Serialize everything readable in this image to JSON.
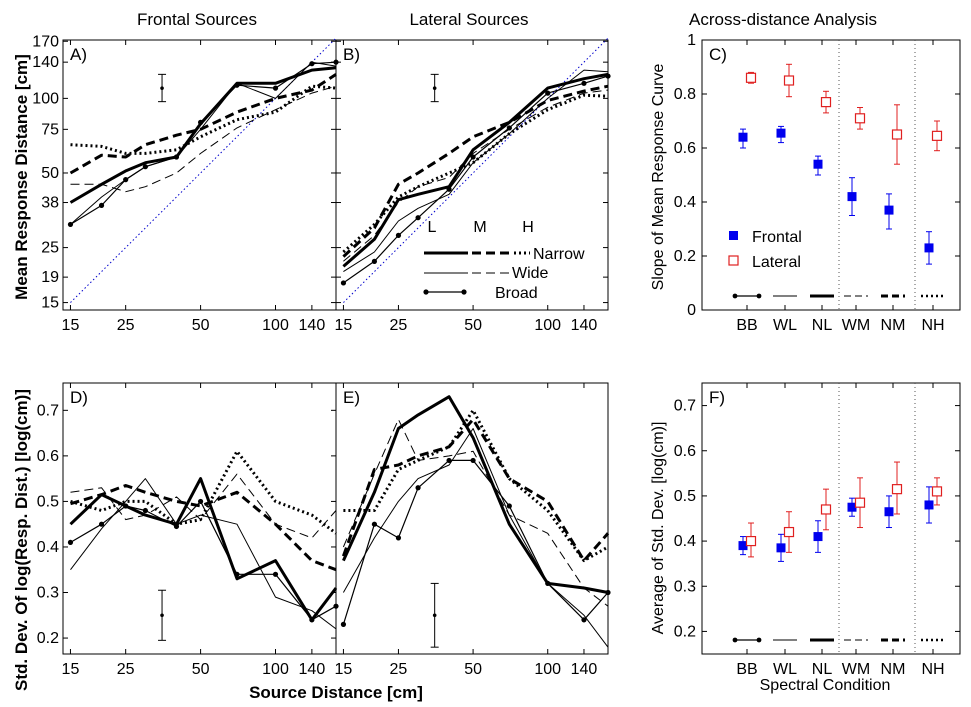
{
  "column_titles": [
    "Frontal Sources",
    "Lateral Sources",
    "Across-distance Analysis"
  ],
  "colors": {
    "frontal": "#0000ee",
    "lateral": "#e02020",
    "ideal": "#0000cc",
    "axis": "#000000"
  },
  "line_legend": {
    "col_headers": [
      "L",
      "M",
      "H"
    ],
    "row_labels": [
      "Narrow",
      "Wide",
      "Broad"
    ]
  },
  "shared_labels": {
    "distance_xlabel": "Source Distance [cm]",
    "response_ylabel": "Mean Response Distance [cm]",
    "stddev_ylabel": "Std. Dev. Of  log(Resp. Dist.) [log(cm)]",
    "spectral_xlabel": "Spectral Condition"
  },
  "chart_data": [
    {
      "type": "line",
      "panel": "A)",
      "title": "Frontal Sources",
      "x_scale": "log",
      "y_scale": "log",
      "xlim": [
        14,
        175
      ],
      "ylim": [
        14,
        172
      ],
      "xticks": [
        15,
        25,
        50,
        100,
        140
      ],
      "yticks": [
        15,
        19,
        25,
        38,
        50,
        75,
        100,
        140,
        170
      ],
      "xlabel": "",
      "ylabel": "Mean Response Distance [cm]",
      "x": [
        15,
        20,
        25,
        30,
        40,
        50,
        70,
        100,
        140,
        175
      ],
      "series": [
        {
          "name": "Narrow L",
          "style": "thick-solid",
          "values": [
            38,
            45,
            51,
            55,
            58,
            79,
            115,
            115,
            130,
            133
          ]
        },
        {
          "name": "Narrow M",
          "style": "thick-dash",
          "values": [
            50,
            59,
            58,
            65,
            71,
            75,
            88,
            100,
            108,
            125
          ]
        },
        {
          "name": "Narrow H",
          "style": "thick-dot",
          "values": [
            65,
            64,
            60,
            60,
            62,
            70,
            82,
            88,
            112,
            110
          ]
        },
        {
          "name": "Wide L",
          "style": "thin-solid",
          "values": [
            31,
            40,
            47,
            53,
            58,
            75,
            115,
            100,
            140,
            135
          ]
        },
        {
          "name": "Wide M",
          "style": "thin-dash",
          "values": [
            45,
            45,
            42,
            44,
            50,
            60,
            76,
            90,
            105,
            112
          ]
        },
        {
          "name": "Broad L",
          "style": "dot-marker",
          "values": [
            31,
            37,
            47,
            53,
            58,
            80,
            113,
            110,
            138,
            140
          ]
        }
      ],
      "reference_line": {
        "style": "thin-dotted-blue",
        "points": [
          [
            15,
            15
          ],
          [
            175,
            175
          ]
        ]
      },
      "error_bar": {
        "x": 35,
        "center": 110,
        "low": 97,
        "high": 125
      }
    },
    {
      "type": "line",
      "panel": "B)",
      "title": "Lateral Sources",
      "x_scale": "log",
      "y_scale": "log",
      "xlim": [
        14,
        175
      ],
      "ylim": [
        14,
        172
      ],
      "xticks": [
        15,
        25,
        50,
        100,
        140
      ],
      "yticks": [
        15,
        19,
        25,
        38,
        50,
        75,
        100,
        140,
        170
      ],
      "x": [
        15,
        20,
        25,
        30,
        40,
        50,
        70,
        100,
        140,
        175
      ],
      "series": [
        {
          "name": "Narrow L",
          "style": "thick-solid",
          "values": [
            21,
            27,
            39,
            41,
            44,
            62,
            80,
            110,
            120,
            125
          ]
        },
        {
          "name": "Narrow M",
          "style": "thick-dash",
          "values": [
            23,
            30,
            45,
            50,
            60,
            70,
            80,
            98,
            107,
            112
          ]
        },
        {
          "name": "Narrow H",
          "style": "thick-dot",
          "values": [
            24,
            31,
            40,
            44,
            50,
            55,
            72,
            90,
            103,
            102
          ]
        },
        {
          "name": "Wide L",
          "style": "thin-solid",
          "values": [
            20,
            24,
            32,
            36,
            41,
            55,
            72,
            100,
            130,
            128
          ]
        },
        {
          "name": "Wide M",
          "style": "thin-dash",
          "values": [
            22,
            28,
            38,
            44,
            48,
            60,
            75,
            92,
            105,
            108
          ]
        },
        {
          "name": "Broad L",
          "style": "dot-marker",
          "values": [
            18,
            22,
            28,
            33,
            43,
            58,
            76,
            105,
            115,
            123
          ]
        }
      ],
      "reference_line": {
        "style": "thin-dotted-blue",
        "points": [
          [
            15,
            15
          ],
          [
            175,
            175
          ]
        ]
      },
      "error_bar": {
        "x": 35,
        "center": 110,
        "low": 97,
        "high": 125
      }
    },
    {
      "type": "scatter",
      "panel": "C)",
      "title": "Across-distance Analysis",
      "ylabel": "Slope of Mean Response Curve",
      "categories": [
        "BB",
        "WL",
        "NL",
        "WM",
        "NM",
        "NH"
      ],
      "ylim": [
        0,
        1
      ],
      "yticks": [
        0,
        0.2,
        0.4,
        0.6,
        0.8,
        1
      ],
      "yticklabels": [
        "0",
        "0.2",
        "0.4",
        "0.6",
        "0.8",
        "1"
      ],
      "series": [
        {
          "name": "Frontal",
          "marker": "filled-square",
          "values": [
            0.64,
            0.655,
            0.54,
            0.42,
            0.37,
            0.23
          ],
          "err_low": [
            0.6,
            0.62,
            0.5,
            0.35,
            0.3,
            0.17
          ],
          "err_high": [
            0.67,
            0.68,
            0.57,
            0.49,
            0.43,
            0.29
          ]
        },
        {
          "name": "Lateral",
          "marker": "open-square",
          "values": [
            0.86,
            0.85,
            0.77,
            0.71,
            0.65,
            0.645
          ],
          "err_low": [
            0.84,
            0.79,
            0.73,
            0.67,
            0.54,
            0.59
          ],
          "err_high": [
            0.88,
            0.91,
            0.81,
            0.75,
            0.76,
            0.7
          ]
        }
      ],
      "legend": [
        "Frontal",
        "Lateral"
      ],
      "separators_after": [
        "NL",
        "NM"
      ]
    },
    {
      "type": "line",
      "panel": "D)",
      "x_scale": "log",
      "xlim": [
        14,
        175
      ],
      "ylim": [
        0.165,
        0.76
      ],
      "xticks": [
        15,
        25,
        50,
        100,
        140
      ],
      "yticks": [
        0.2,
        0.3,
        0.4,
        0.5,
        0.6,
        0.7
      ],
      "xlabel": "Source Distance [cm]",
      "ylabel": "Std. Dev. Of  log(Resp. Dist.) [log(cm)]",
      "x": [
        15,
        20,
        25,
        30,
        40,
        50,
        70,
        100,
        140,
        175
      ],
      "series": [
        {
          "name": "Narrow L",
          "style": "thick-solid",
          "values": [
            0.45,
            0.515,
            0.49,
            0.47,
            0.45,
            0.55,
            0.33,
            0.37,
            0.24,
            0.31
          ]
        },
        {
          "name": "Narrow M",
          "style": "thick-dash",
          "values": [
            0.495,
            0.515,
            0.535,
            0.52,
            0.5,
            0.49,
            0.52,
            0.45,
            0.37,
            0.35
          ]
        },
        {
          "name": "Narrow H",
          "style": "thick-dot",
          "values": [
            0.5,
            0.48,
            0.5,
            0.5,
            0.45,
            0.46,
            0.61,
            0.5,
            0.47,
            0.43
          ]
        },
        {
          "name": "Wide L",
          "style": "thin-solid",
          "values": [
            0.35,
            0.44,
            0.5,
            0.55,
            0.45,
            0.47,
            0.45,
            0.29,
            0.26,
            0.22
          ]
        },
        {
          "name": "Wide M",
          "style": "thin-dash",
          "values": [
            0.52,
            0.53,
            0.46,
            0.47,
            0.51,
            0.46,
            0.56,
            0.45,
            0.42,
            0.48
          ]
        },
        {
          "name": "Broad L",
          "style": "dot-marker",
          "values": [
            0.41,
            0.45,
            0.49,
            0.48,
            0.445,
            0.5,
            0.34,
            0.34,
            0.24,
            0.27
          ]
        }
      ],
      "error_bar": {
        "x": 35,
        "center": 0.25,
        "low": 0.195,
        "high": 0.305
      }
    },
    {
      "type": "line",
      "panel": "E)",
      "x_scale": "log",
      "xlim": [
        14,
        175
      ],
      "ylim": [
        0.165,
        0.76
      ],
      "xticks": [
        15,
        25,
        50,
        100,
        140
      ],
      "x": [
        15,
        20,
        25,
        30,
        40,
        50,
        70,
        100,
        140,
        175
      ],
      "series": [
        {
          "name": "Narrow L",
          "style": "thick-solid",
          "values": [
            0.37,
            0.52,
            0.66,
            0.69,
            0.73,
            0.64,
            0.45,
            0.32,
            0.31,
            0.3
          ]
        },
        {
          "name": "Narrow M",
          "style": "thick-dash",
          "values": [
            0.38,
            0.57,
            0.58,
            0.6,
            0.62,
            0.68,
            0.55,
            0.5,
            0.37,
            0.43
          ]
        },
        {
          "name": "Narrow H",
          "style": "thick-dot",
          "values": [
            0.48,
            0.48,
            0.57,
            0.59,
            0.62,
            0.7,
            0.55,
            0.48,
            0.37,
            0.4
          ]
        },
        {
          "name": "Wide L",
          "style": "thin-solid",
          "values": [
            0.3,
            0.42,
            0.5,
            0.55,
            0.58,
            0.66,
            0.47,
            0.32,
            0.25,
            0.18
          ]
        },
        {
          "name": "Wide M",
          "style": "thin-dash",
          "values": [
            0.4,
            0.56,
            0.68,
            0.59,
            0.6,
            0.61,
            0.47,
            0.43,
            0.31,
            0.27
          ]
        },
        {
          "name": "Broad L",
          "style": "dot-marker",
          "values": [
            0.23,
            0.45,
            0.42,
            0.53,
            0.59,
            0.59,
            0.49,
            0.32,
            0.24,
            0.3
          ]
        }
      ],
      "error_bar": {
        "x": 35,
        "center": 0.25,
        "low": 0.18,
        "high": 0.32
      }
    },
    {
      "type": "scatter",
      "panel": "F)",
      "ylabel": "Average of Std. Dev. [log(cm)]",
      "xlabel": "Spectral Condition",
      "categories": [
        "BB",
        "WL",
        "NL",
        "WM",
        "NM",
        "NH"
      ],
      "ylim": [
        0.15,
        0.75
      ],
      "yticks": [
        0.2,
        0.3,
        0.4,
        0.5,
        0.6,
        0.7
      ],
      "yticklabels": [
        "0.2",
        "0.3",
        "0.4",
        "0.5",
        "0.6",
        "0.7"
      ],
      "series": [
        {
          "name": "Frontal",
          "marker": "filled-square",
          "values": [
            0.39,
            0.385,
            0.41,
            0.475,
            0.465,
            0.48
          ],
          "err_low": [
            0.37,
            0.355,
            0.375,
            0.455,
            0.43,
            0.44
          ],
          "err_high": [
            0.41,
            0.415,
            0.445,
            0.495,
            0.5,
            0.52
          ]
        },
        {
          "name": "Lateral",
          "marker": "open-square",
          "values": [
            0.4,
            0.42,
            0.47,
            0.485,
            0.515,
            0.51
          ],
          "err_low": [
            0.365,
            0.375,
            0.425,
            0.43,
            0.46,
            0.48
          ],
          "err_high": [
            0.44,
            0.465,
            0.515,
            0.54,
            0.575,
            0.54
          ]
        }
      ],
      "separators_after": [
        "NL",
        "NM"
      ]
    }
  ]
}
